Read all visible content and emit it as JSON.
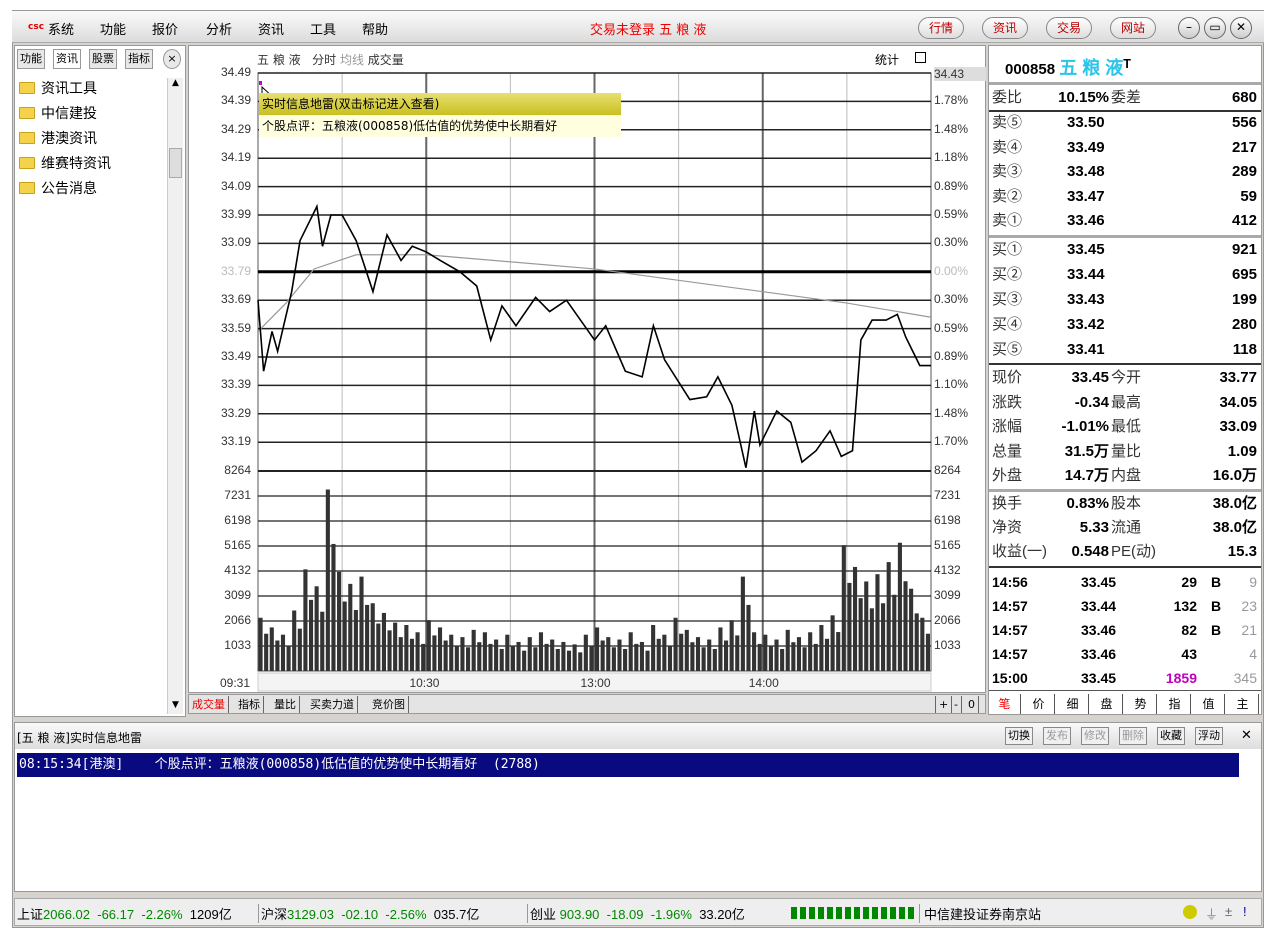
{
  "menu": {
    "logo": "csc",
    "items": [
      "系统",
      "功能",
      "报价",
      "分析",
      "资讯",
      "工具",
      "帮助"
    ],
    "center_title": "交易未登录 五 粮 液",
    "nav_buttons": [
      "行情",
      "资讯",
      "交易",
      "网站"
    ],
    "window_buttons": [
      "–",
      "▭",
      "✕"
    ]
  },
  "left_panel": {
    "tabs": [
      "功能",
      "资讯",
      "股票",
      "指标"
    ],
    "close": "×",
    "items": [
      "资讯工具",
      "中信建投",
      "港澳资讯",
      "维赛特资讯",
      "公告消息"
    ]
  },
  "chart": {
    "header": {
      "name": "五 粮 液",
      "mode": "分时",
      "sub1": "均线",
      "sub2": "成交量",
      "stat": "统计"
    },
    "tooltip": {
      "title": "实时信息地雷(双击标记进入查看)",
      "text": "个股点评：五粮液(000858)低估值的优势使中长期看好"
    },
    "price_labels": [
      "34.49",
      "34.39",
      "34.29",
      "34.19",
      "34.09",
      "33.99",
      "33.09",
      "33.79",
      "33.69",
      "33.59",
      "33.49",
      "33.39",
      "33.29",
      "33.19"
    ],
    "pct_labels": [
      "34.43",
      "1.78%",
      "1.48%",
      "1.18%",
      "0.89%",
      "0.59%",
      "0.30%",
      "0.00%",
      "0.30%",
      "0.59%",
      "0.89%",
      "1.10%",
      "1.48%",
      "1.70%"
    ],
    "vol_labels": [
      "8264",
      "7231",
      "6198",
      "5165",
      "4132",
      "3099",
      "2066",
      "1033"
    ],
    "time_labels": [
      "09:31",
      "10:30",
      "13:00",
      "14:00"
    ],
    "bottom_tabs": [
      "成交量",
      "指标",
      "量比",
      "买卖力道",
      "竞价图"
    ],
    "zoom_buttons": [
      "+",
      "-",
      "0"
    ]
  },
  "chart_data": {
    "type": "line",
    "prev_close": 33.79,
    "ylim": [
      33.19,
      34.49
    ],
    "vol_max": 8264,
    "minutes": 240,
    "price": [
      [
        0,
        33.69
      ],
      [
        2,
        33.44
      ],
      [
        5,
        33.58
      ],
      [
        7,
        33.51
      ],
      [
        12,
        33.72
      ],
      [
        15,
        33.9
      ],
      [
        21,
        34.02
      ],
      [
        23,
        33.88
      ],
      [
        26,
        33.99
      ],
      [
        30,
        33.99
      ],
      [
        35,
        33.9
      ],
      [
        41,
        33.72
      ],
      [
        46,
        33.92
      ],
      [
        51,
        33.83
      ],
      [
        55,
        33.88
      ],
      [
        60,
        33.86
      ],
      [
        65,
        33.83
      ],
      [
        72,
        33.79
      ],
      [
        78,
        33.74
      ],
      [
        83,
        33.55
      ],
      [
        87,
        33.67
      ],
      [
        92,
        33.6
      ],
      [
        99,
        33.7
      ],
      [
        104,
        33.65
      ],
      [
        110,
        33.69
      ],
      [
        115,
        33.62
      ],
      [
        120,
        33.55
      ],
      [
        124,
        33.6
      ],
      [
        131,
        33.44
      ],
      [
        137,
        33.42
      ],
      [
        141,
        33.6
      ],
      [
        145,
        33.48
      ],
      [
        154,
        33.34
      ],
      [
        160,
        33.35
      ],
      [
        164,
        33.42
      ],
      [
        169,
        33.32
      ],
      [
        174,
        33.1
      ],
      [
        177,
        33.3
      ],
      [
        179,
        33.18
      ],
      [
        185,
        33.3
      ],
      [
        190,
        33.26
      ],
      [
        194,
        33.12
      ],
      [
        199,
        33.16
      ],
      [
        204,
        33.23
      ],
      [
        208,
        33.14
      ],
      [
        212,
        33.16
      ],
      [
        215,
        33.55
      ],
      [
        219,
        33.62
      ],
      [
        224,
        33.62
      ],
      [
        228,
        33.64
      ],
      [
        231,
        33.56
      ],
      [
        236,
        33.46
      ],
      [
        240,
        33.46
      ]
    ],
    "average": [
      [
        0,
        33.58
      ],
      [
        10,
        33.68
      ],
      [
        20,
        33.8
      ],
      [
        35,
        33.85
      ],
      [
        60,
        33.85
      ],
      [
        120,
        33.8
      ],
      [
        180,
        33.72
      ],
      [
        210,
        33.68
      ],
      [
        240,
        33.63
      ]
    ],
    "volume": [
      2200,
      1800,
      1500,
      2500,
      4200,
      3500,
      7500,
      4100,
      3600,
      3900,
      2800,
      2400,
      2000,
      1900,
      1600,
      2100,
      1800,
      1500,
      1400,
      1700,
      1600,
      1300,
      1500,
      1200,
      1400,
      1600,
      1300,
      1200,
      1100,
      1500,
      1800,
      1400,
      1300,
      1600,
      1200,
      1900,
      1500,
      2200,
      1700,
      1400,
      1300,
      1800,
      2100,
      3900,
      1600,
      1500,
      1300,
      1700,
      1400,
      1600,
      1900,
      2300,
      5200,
      4300,
      3700,
      4000,
      4500,
      5300,
      3400,
      2200
    ]
  },
  "right_panel": {
    "code": "000858",
    "name": "五 粮 液",
    "flag": "T",
    "weibi": {
      "label": "委比",
      "value": "10.15%",
      "label2": "委差",
      "value2": "680"
    },
    "sells": [
      {
        "label": "卖⑤",
        "price": "33.50",
        "vol": "556"
      },
      {
        "label": "卖④",
        "price": "33.49",
        "vol": "217"
      },
      {
        "label": "卖③",
        "price": "33.48",
        "vol": "289"
      },
      {
        "label": "卖②",
        "price": "33.47",
        "vol": "59"
      },
      {
        "label": "卖①",
        "price": "33.46",
        "vol": "412"
      }
    ],
    "buys": [
      {
        "label": "买①",
        "price": "33.45",
        "vol": "921"
      },
      {
        "label": "买②",
        "price": "33.44",
        "vol": "695"
      },
      {
        "label": "买③",
        "price": "33.43",
        "vol": "199"
      },
      {
        "label": "买④",
        "price": "33.42",
        "vol": "280"
      },
      {
        "label": "买⑤",
        "price": "33.41",
        "vol": "118"
      }
    ],
    "quotes": [
      {
        "l1": "现价",
        "v1": "33.45",
        "l2": "今开",
        "v2": "33.77"
      },
      {
        "l1": "涨跌",
        "v1": "-0.34",
        "l2": "最高",
        "v2": "34.05"
      },
      {
        "l1": "涨幅",
        "v1": "-1.01%",
        "l2": "最低",
        "v2": "33.09"
      },
      {
        "l1": "总量",
        "v1": "31.5万",
        "l2": "量比",
        "v2": "1.09"
      },
      {
        "l1": "外盘",
        "v1": "14.7万",
        "l2": "内盘",
        "v2": "16.0万"
      }
    ],
    "fundamentals": [
      {
        "l1": "换手",
        "v1": "0.83%",
        "l2": "股本",
        "v2": "38.0亿"
      },
      {
        "l1": "净资",
        "v1": "5.33",
        "l2": "流通",
        "v2": "38.0亿"
      },
      {
        "l1": "收益(一)",
        "v1": "0.548",
        "l2": "PE(动)",
        "v2": "15.3"
      }
    ],
    "ticks": [
      {
        "time": "14:56",
        "price": "33.45",
        "vol": "29",
        "bs": "B",
        "n": "9"
      },
      {
        "time": "14:57",
        "price": "33.44",
        "vol": "132",
        "bs": "B",
        "n": "23"
      },
      {
        "time": "14:57",
        "price": "33.46",
        "vol": "82",
        "bs": "B",
        "n": "21"
      },
      {
        "time": "14:57",
        "price": "33.46",
        "vol": "43",
        "bs": "",
        "n": "4"
      },
      {
        "time": "15:00",
        "price": "33.45",
        "vol": "1859",
        "bs": "",
        "n": "345"
      }
    ],
    "tabs": [
      "笔",
      "价",
      "细",
      "盘",
      "势",
      "指",
      "值",
      "主"
    ]
  },
  "info_panel": {
    "title": "[五 粮 液]实时信息地雷",
    "buttons": [
      "切换",
      "发布",
      "修改",
      "删除",
      "收藏",
      "浮动"
    ],
    "close": "✕",
    "rows": [
      {
        "time": "08:15:34",
        "source": "[港澳]",
        "text": "个股点评：五粮液(000858)低估值的优势使中长期看好",
        "size": "(2788)"
      }
    ]
  },
  "status_bar": {
    "indices": [
      {
        "name": "上证",
        "value": "2066.02",
        "change": "-66.17",
        "pct": "-2.26%",
        "amount": "1209亿"
      },
      {
        "name": "沪深",
        "value": "3129.03",
        "change": "-02.10",
        "pct": "-2.56%",
        "amount": "035.7亿"
      },
      {
        "name": "创业",
        "value": "903.90",
        "change": "-18.09",
        "pct": "-1.96%",
        "amount": "33.20亿"
      }
    ],
    "broker": "中信建投证券南京站"
  },
  "colors": {
    "accent_red": "#e00000",
    "selected_row": "#0a0a80",
    "down_green": "#008000",
    "highlight": "#c000c0",
    "name_cyan": "#2cc4e8"
  }
}
